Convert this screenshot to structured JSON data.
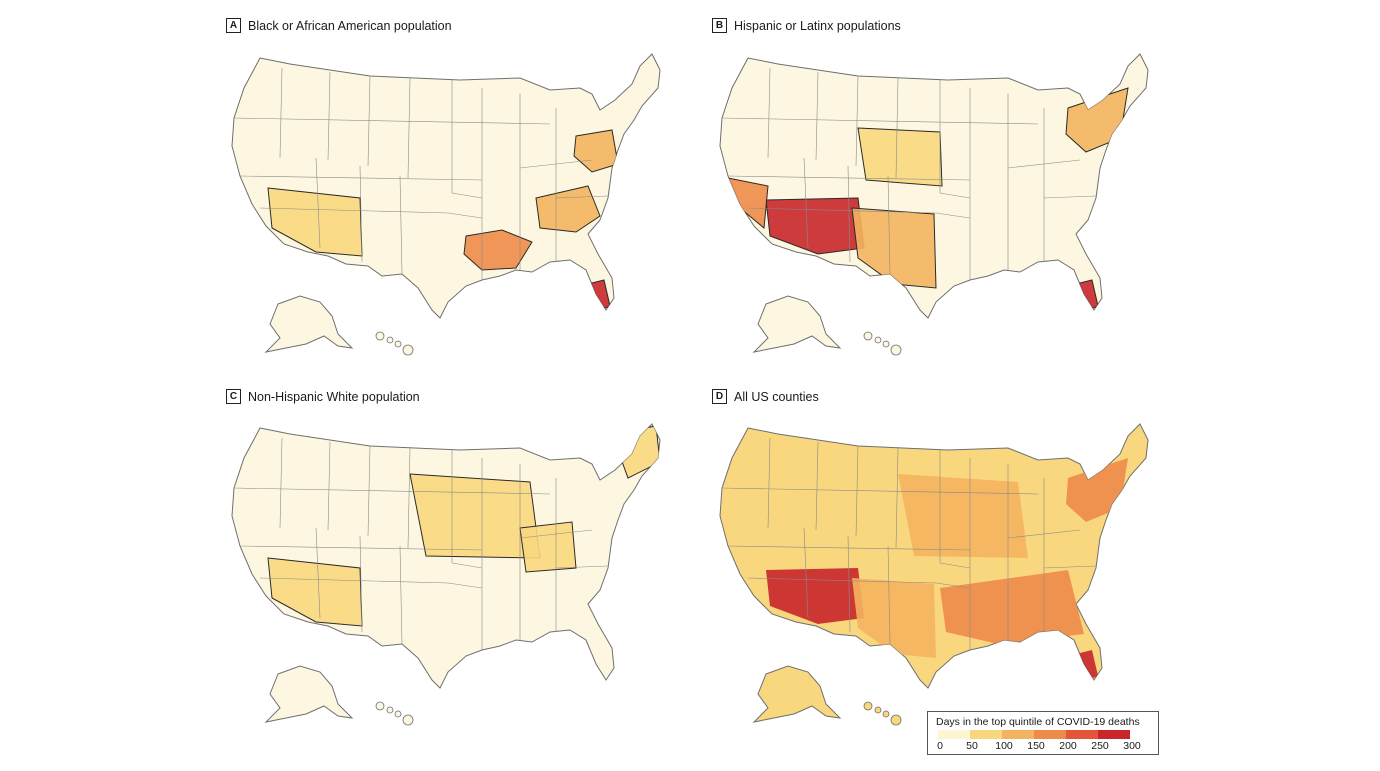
{
  "panels": [
    {
      "letter": "A",
      "title": "Black or African American population",
      "hotspots": [
        {
          "label": "deep-south",
          "level": 3
        },
        {
          "label": "carolinas",
          "level": 2
        },
        {
          "label": "mid-atlantic",
          "level": 2
        },
        {
          "label": "south-florida",
          "level": 5
        },
        {
          "label": "southwest",
          "level": 1
        }
      ]
    },
    {
      "letter": "B",
      "title": "Hispanic or Latinx populations",
      "hotspots": [
        {
          "label": "arizona-new-mexico",
          "level": 5
        },
        {
          "label": "southern-california",
          "level": 3
        },
        {
          "label": "texas",
          "level": 2
        },
        {
          "label": "south-florida",
          "level": 5
        },
        {
          "label": "great-plains",
          "level": 1
        },
        {
          "label": "northeast",
          "level": 2
        }
      ]
    },
    {
      "letter": "C",
      "title": "Non-Hispanic White population",
      "hotspots": [
        {
          "label": "midwest",
          "level": 1
        },
        {
          "label": "appalachia",
          "level": 1
        },
        {
          "label": "new-england",
          "level": 1
        },
        {
          "label": "southwest",
          "level": 1
        }
      ]
    },
    {
      "letter": "D",
      "title": "All US counties",
      "hotspots": [
        {
          "label": "arizona-new-mexico",
          "level": 5
        },
        {
          "label": "southeast",
          "level": 3
        },
        {
          "label": "texas",
          "level": 2
        },
        {
          "label": "midwest",
          "level": 2
        },
        {
          "label": "northeast",
          "level": 3
        },
        {
          "label": "south-florida",
          "level": 5
        }
      ]
    }
  ],
  "legend": {
    "title": "Days in the top quintile of COVID-19 deaths",
    "ticks": [
      "0",
      "50",
      "100",
      "150",
      "200",
      "250",
      "300"
    ],
    "colors": [
      "#fdf6d3",
      "#f9d77e",
      "#f4b45f",
      "#ee8b4a",
      "#e4553a",
      "#c8262b"
    ]
  },
  "colors": {
    "base": "#fdf7e1",
    "border": "#8a8a8a",
    "highlight_outline": "#2a2a2a",
    "muted_pink": "#f3d2d0"
  }
}
